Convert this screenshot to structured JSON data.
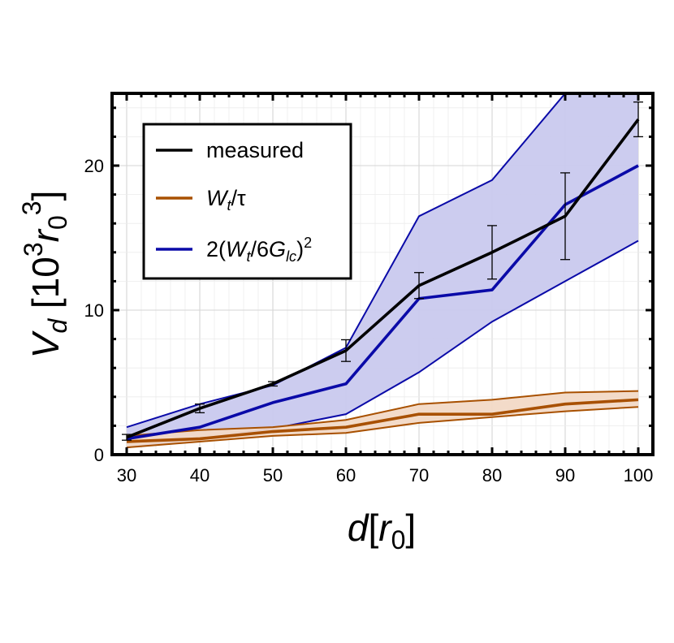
{
  "chart_data": {
    "type": "line",
    "title": "",
    "xlabel": "d[r0]",
    "ylabel": "Vd [10^3 r0^3]",
    "xlim": [
      28,
      102
    ],
    "ylim": [
      0,
      25
    ],
    "x_ticks": [
      30,
      40,
      50,
      60,
      70,
      80,
      90,
      100
    ],
    "y_ticks": [
      0,
      10,
      20
    ],
    "grid": true,
    "legend_position": "top-left",
    "legend": [
      {
        "name": "measured",
        "color": "#000000"
      },
      {
        "name": "Wt/τ",
        "color": "#a85000"
      },
      {
        "name": "2(Wt/6Glc)^2",
        "color": "#0a0aa8"
      }
    ],
    "x": [
      30,
      40,
      50,
      60,
      70,
      80,
      90,
      100
    ],
    "series": [
      {
        "name": "measured",
        "color": "#000000",
        "values": [
          1.2,
          3.2,
          4.9,
          7.2,
          11.7,
          14.0,
          16.5,
          23.2
        ],
        "error": [
          0.2,
          0.3,
          0.15,
          0.75,
          0.9,
          1.85,
          3.0,
          1.2
        ]
      },
      {
        "name": "Wt/τ",
        "color": "#a85000",
        "fill": "#f2d9c6",
        "values": [
          0.9,
          1.1,
          1.6,
          1.9,
          2.8,
          2.8,
          3.5,
          3.8
        ],
        "upper": [
          1.3,
          1.7,
          1.9,
          2.4,
          3.5,
          3.8,
          4.3,
          4.4
        ],
        "lower": [
          0.5,
          0.9,
          1.3,
          1.5,
          2.2,
          2.6,
          3.0,
          3.3
        ]
      },
      {
        "name": "2(Wt/6Glc)^2",
        "color": "#0a0aa8",
        "fill": "#c9c9ee",
        "values": [
          1.1,
          1.9,
          3.6,
          4.9,
          10.8,
          11.4,
          17.3,
          20.0
        ],
        "upper": [
          1.9,
          3.5,
          4.8,
          7.4,
          16.5,
          19.0,
          25.0,
          25.0
        ],
        "lower": [
          0.5,
          1.1,
          1.8,
          2.8,
          5.7,
          9.2,
          12.0,
          14.8
        ]
      }
    ]
  },
  "labels": {
    "legend_measured": "measured",
    "legend_wt_w": "W",
    "legend_wt_t": "t",
    "legend_wt_tau": "/τ",
    "legend_blue_prefix": "2(",
    "legend_blue_w": "W",
    "legend_blue_t": "t",
    "legend_blue_mid": "/6",
    "legend_blue_g": "G",
    "legend_blue_lc": "lc",
    "legend_blue_close": ")",
    "legend_blue_sup": "2",
    "ylabel_v": "V",
    "ylabel_d": "d",
    "ylabel_br_open": " [10",
    "ylabel_exp3": "3",
    "ylabel_r": "r",
    "ylabel_r_sub": "0",
    "ylabel_exp3b": "3",
    "ylabel_br_close": "]",
    "xlabel_d": "d",
    "xlabel_open": "[",
    "xlabel_r": "r",
    "xlabel_sub": "0",
    "xlabel_close": "]"
  }
}
